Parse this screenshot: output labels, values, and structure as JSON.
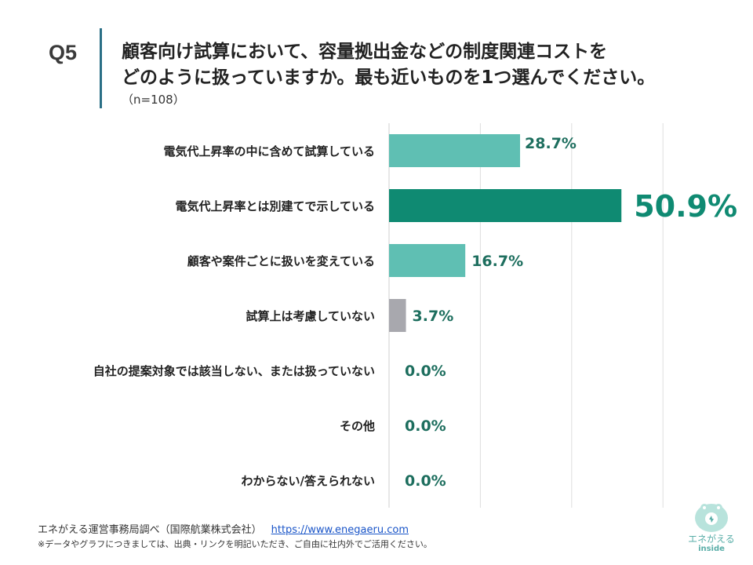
{
  "question": {
    "number": "Q5",
    "title_line1": "顧客向け試算において、容量拠出金などの制度関連コストを",
    "title_line2": "どのように扱っていますか。最も近いものを1つ選んでください。",
    "n_label": "（n=108）"
  },
  "chart_data": {
    "type": "bar",
    "orientation": "horizontal",
    "title": "",
    "xlabel": "",
    "ylabel": "",
    "xlim": [
      0,
      75
    ],
    "grid": true,
    "categories": [
      "電気代上昇率の中に含めて試算している",
      "電気代上昇率とは別建てで示している",
      "顧客や案件ごとに扱いを変えている",
      "試算上は考慮していない",
      "自社の提案対象では該当しない、または扱っていない",
      "その他",
      "わからない/答えられない"
    ],
    "values": [
      28.7,
      50.9,
      16.7,
      3.7,
      0.0,
      0.0,
      0.0
    ],
    "labels": [
      "28.7%",
      "50.9%",
      "16.7%",
      "3.7%",
      "0.0%",
      "0.0%",
      "0.0%"
    ],
    "highlight_index": 1,
    "colors": {
      "default": "#5fbfb3",
      "highlight": "#0f8a72",
      "negative": "#a8a8ae",
      "label": "#1d6e5e",
      "grid": "#dedede"
    }
  },
  "footer": {
    "source": "エネがえる運営事務局調べ（国際航業株式会社）",
    "url": "https://www.enegaeru.com",
    "note": "※データやグラフにつきましては、出典・リンクを明記いただき、ご自由に社内外でご活用ください。"
  },
  "logo": {
    "name": "エネがえる",
    "sub": "inside",
    "icon": "enegaeru-frog-icon"
  }
}
